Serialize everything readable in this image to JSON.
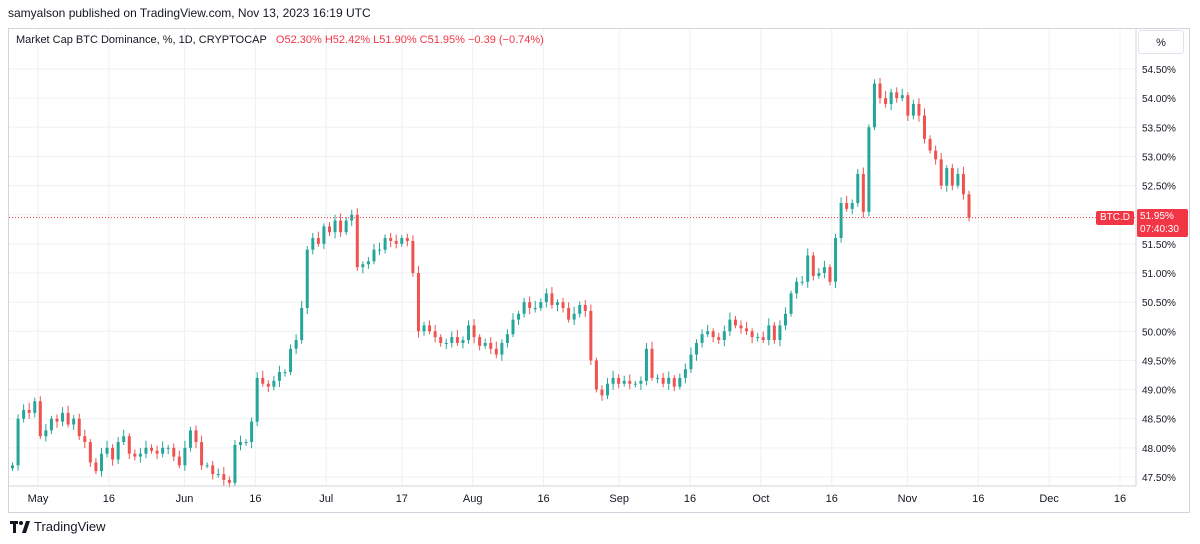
{
  "header": {
    "published": "samyalson published on TradingView.com, Nov 13, 2023 16:19 UTC"
  },
  "legend": {
    "symbol": "Market Cap BTC Dominance, %, 1D, CRYPTOCAP",
    "open": "O52.30%",
    "high": "H52.42%",
    "low": "L51.90%",
    "close": "C51.95%",
    "change": "−0.39 (−0.74%)"
  },
  "unit_button": "%",
  "last_price": {
    "symbol": "BTC.D",
    "price": "51.95%",
    "countdown": "07:40:30"
  },
  "footer": {
    "brand": "TradingView"
  },
  "colors": {
    "up": "#26a69a",
    "down": "#ef5350",
    "price_line": "#f23645",
    "grid": "#eef0f4"
  },
  "chart_data": {
    "type": "candlestick",
    "title": "",
    "xlabel": "",
    "ylabel": "",
    "ylim": [
      47.35,
      55.0
    ],
    "grid": true,
    "y_ticks": [
      "47.50%",
      "48.00%",
      "48.50%",
      "49.00%",
      "49.50%",
      "50.00%",
      "50.50%",
      "51.00%",
      "51.50%",
      "52.00%",
      "52.50%",
      "53.00%",
      "53.50%",
      "54.00%",
      "54.50%"
    ],
    "y_tick_values": [
      47.5,
      48.0,
      48.5,
      49.0,
      49.5,
      50.0,
      50.5,
      51.0,
      51.5,
      52.0,
      52.5,
      53.0,
      53.5,
      54.0,
      54.5
    ],
    "x_ticks": [
      "May",
      "16",
      "Jun",
      "16",
      "Jul",
      "17",
      "Aug",
      "16",
      "Sep",
      "16",
      "Oct",
      "16",
      "Nov",
      "16",
      "Dec",
      "16"
    ],
    "x_tick_days": [
      0,
      15,
      31,
      46,
      61,
      77,
      92,
      107,
      123,
      138,
      153,
      168,
      184,
      199,
      214,
      229
    ],
    "last_close": 51.95,
    "closes": [
      47.7,
      48.5,
      48.65,
      48.6,
      48.8,
      48.2,
      48.3,
      48.5,
      48.45,
      48.6,
      48.4,
      48.5,
      48.2,
      48.1,
      47.75,
      47.6,
      47.9,
      48.0,
      47.8,
      48.1,
      48.2,
      47.9,
      47.85,
      47.9,
      48.0,
      47.95,
      47.9,
      48.0,
      48.0,
      47.85,
      47.7,
      48.0,
      48.3,
      48.1,
      47.7,
      47.7,
      47.55,
      47.55,
      47.45,
      47.4,
      48.05,
      48.1,
      48.1,
      48.45,
      49.2,
      49.1,
      49.05,
      49.15,
      49.3,
      49.3,
      49.7,
      49.85,
      50.4,
      51.4,
      51.6,
      51.5,
      51.8,
      51.7,
      51.9,
      51.7,
      51.9,
      52.0,
      51.1,
      51.15,
      51.2,
      51.4,
      51.4,
      51.6,
      51.55,
      51.5,
      51.6,
      51.55,
      51.0,
      50.0,
      50.1,
      50.0,
      49.9,
      49.8,
      49.8,
      49.9,
      49.8,
      49.85,
      50.1,
      49.9,
      49.75,
      49.8,
      49.7,
      49.6,
      49.8,
      49.95,
      50.2,
      50.3,
      50.5,
      50.4,
      50.4,
      50.5,
      50.65,
      50.45,
      50.5,
      50.4,
      50.2,
      50.3,
      50.45,
      50.35,
      49.5,
      49.0,
      48.9,
      49.1,
      49.2,
      49.1,
      49.15,
      49.1,
      49.1,
      49.15,
      49.7,
      49.2,
      49.2,
      49.1,
      49.2,
      49.05,
      49.2,
      49.35,
      49.6,
      49.8,
      49.95,
      50.0,
      49.9,
      49.85,
      50.0,
      50.2,
      50.1,
      50.05,
      50.0,
      49.9,
      49.9,
      49.85,
      50.1,
      49.85,
      50.1,
      50.3,
      50.65,
      50.85,
      50.85,
      51.3,
      50.95,
      51.0,
      51.1,
      50.85,
      51.6,
      52.2,
      52.1,
      52.2,
      52.7,
      52.05,
      53.5,
      54.25,
      54.0,
      53.9,
      54.1,
      54.0,
      54.05,
      53.7,
      53.9,
      53.7,
      53.3,
      53.1,
      52.95,
      52.5,
      52.8,
      52.5,
      52.7,
      52.35,
      51.95
    ]
  }
}
